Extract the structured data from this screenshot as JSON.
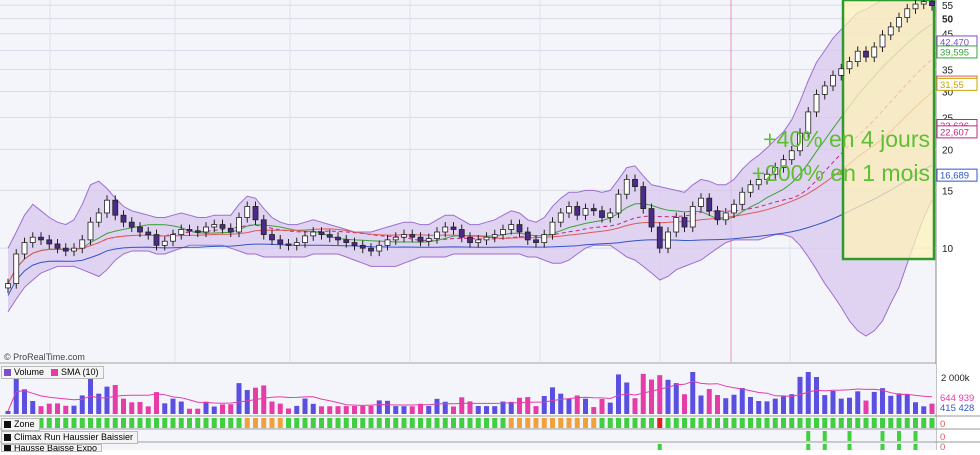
{
  "watermark": "© ProRealTime.com",
  "annotations": [
    "+40% en 4 jours",
    "+200% en 1 mois"
  ],
  "price_axis_ticks": [
    "55",
    "50",
    "45",
    "40",
    "35",
    "30",
    "25",
    "20",
    "15",
    "10"
  ],
  "price_badges": [
    {
      "value": "42,470",
      "color": "#7b4fc8"
    },
    {
      "value": "39,595",
      "color": "#3aa33a"
    },
    {
      "value": "32,052",
      "color": "#e05a5a"
    },
    {
      "value": "31,55",
      "color": "#c8a400"
    },
    {
      "value": "23,636",
      "color": "#c02880"
    },
    {
      "value": "22,607",
      "color": "#c02880"
    },
    {
      "value": "16,689",
      "color": "#3355cc"
    }
  ],
  "volume_panel": {
    "legend": [
      "Volume",
      "SMA (10)"
    ],
    "axis_label": "2 000k",
    "badges": [
      {
        "value": "644 939",
        "color": "#e63ca8"
      },
      {
        "value": "415 428",
        "color": "#3355cc"
      }
    ]
  },
  "indicator_panels": [
    {
      "title": "Zone",
      "value": "0"
    },
    {
      "title": "Climax Run Haussier Baissier",
      "value": "0"
    },
    {
      "title": "Hausse Baisse Expo",
      "value": "0"
    }
  ],
  "chart_data": {
    "type": "candlestick",
    "ylim": [
      5,
      57
    ],
    "ohlc_close_approx": [
      7.8,
      9.6,
      10.4,
      10.8,
      10.6,
      10.3,
      10.0,
      9.8,
      10.0,
      10.6,
      12.0,
      12.8,
      14.0,
      12.6,
      12.0,
      11.6,
      11.2,
      11.0,
      10.2,
      10.5,
      11.0,
      11.4,
      11.3,
      11.2,
      11.6,
      11.8,
      11.5,
      11.2,
      12.4,
      13.4,
      12.2,
      11.0,
      10.6,
      10.3,
      10.2,
      10.4,
      10.9,
      11.2,
      11.0,
      10.8,
      10.6,
      10.4,
      10.2,
      10.0,
      9.8,
      10.2,
      10.6,
      10.8,
      11.0,
      10.8,
      10.5,
      10.7,
      11.2,
      11.6,
      11.4,
      10.8,
      10.4,
      10.6,
      10.8,
      11.0,
      11.4,
      11.8,
      11.2,
      10.6,
      10.4,
      11.0,
      12.0,
      12.8,
      13.4,
      12.6,
      13.2,
      13.0,
      12.4,
      12.8,
      14.6,
      16.2,
      15.4,
      13.2,
      11.6,
      10.0,
      11.2,
      12.4,
      11.6,
      13.4,
      14.2,
      13.0,
      12.2,
      12.8,
      13.6,
      14.8,
      15.6,
      16.2,
      16.8,
      17.6,
      18.6,
      19.8,
      22.4,
      26.0,
      29.4,
      31.2,
      33.6,
      35.2,
      37.0,
      39.8,
      38.2,
      41.0,
      44.6,
      47.2,
      50.4,
      53.6,
      55.4,
      56.4,
      54.8
    ],
    "bollinger_upper_approx": [
      10.0,
      11.2,
      12.6,
      13.6,
      13.0,
      12.4,
      12.0,
      11.8,
      12.2,
      13.6,
      15.6,
      16.0,
      15.2,
      14.2,
      13.4,
      13.0,
      12.8,
      12.6,
      12.4,
      12.4,
      12.6,
      12.8,
      12.6,
      12.4,
      12.4,
      12.6,
      12.6,
      12.6,
      13.6,
      14.4,
      14.2,
      13.2,
      12.4,
      12.0,
      11.8,
      11.8,
      12.0,
      12.2,
      12.0,
      11.8,
      11.6,
      11.4,
      11.2,
      11.2,
      11.2,
      11.4,
      11.6,
      11.8,
      12.0,
      12.0,
      11.8,
      11.8,
      12.2,
      12.6,
      12.6,
      12.2,
      11.8,
      11.8,
      12.0,
      12.2,
      12.6,
      13.0,
      12.8,
      12.2,
      12.0,
      12.4,
      13.4,
      14.2,
      14.8,
      14.8,
      15.0,
      15.0,
      14.8,
      15.0,
      16.2,
      17.6,
      17.8,
      16.6,
      15.6,
      15.4,
      15.2,
      15.0,
      14.8,
      15.6,
      16.2,
      16.0,
      15.6,
      15.6,
      16.2,
      17.4,
      18.4,
      19.2,
      20.2,
      21.4,
      22.6,
      24.6,
      28.0,
      32.4,
      36.8,
      40.0,
      43.6,
      46.4,
      49.2,
      52.2,
      53.4,
      55.2,
      57.0,
      57.0,
      57.0,
      57.0,
      57.0,
      57.0,
      57.0
    ],
    "bollinger_lower_approx": [
      6.4,
      7.0,
      7.6,
      8.0,
      8.4,
      8.6,
      8.8,
      8.8,
      8.8,
      8.6,
      8.4,
      8.2,
      8.6,
      9.2,
      9.6,
      9.8,
      9.8,
      9.8,
      9.6,
      9.6,
      9.8,
      10.0,
      10.2,
      10.2,
      10.2,
      10.2,
      10.2,
      10.0,
      9.8,
      9.6,
      9.6,
      9.4,
      9.4,
      9.4,
      9.4,
      9.4,
      9.4,
      9.6,
      9.6,
      9.6,
      9.6,
      9.4,
      9.2,
      9.0,
      8.8,
      8.8,
      8.8,
      8.8,
      9.0,
      9.2,
      9.4,
      9.4,
      9.4,
      9.4,
      9.6,
      9.6,
      9.6,
      9.6,
      9.6,
      9.6,
      9.6,
      9.6,
      9.6,
      9.4,
      9.4,
      9.2,
      9.0,
      9.0,
      9.2,
      9.6,
      10.0,
      10.2,
      10.2,
      10.2,
      9.8,
      9.4,
      9.2,
      8.8,
      8.4,
      8.0,
      8.2,
      8.6,
      8.8,
      9.0,
      9.2,
      9.6,
      10.0,
      10.4,
      10.6,
      10.6,
      10.6,
      10.6,
      10.8,
      11.0,
      11.0,
      10.8,
      10.2,
      9.4,
      8.6,
      7.8,
      7.2,
      6.6,
      6.0,
      5.6,
      5.4,
      5.6,
      6.0,
      6.8,
      7.6,
      9.0,
      10.6,
      12.4,
      14.0
    ]
  }
}
